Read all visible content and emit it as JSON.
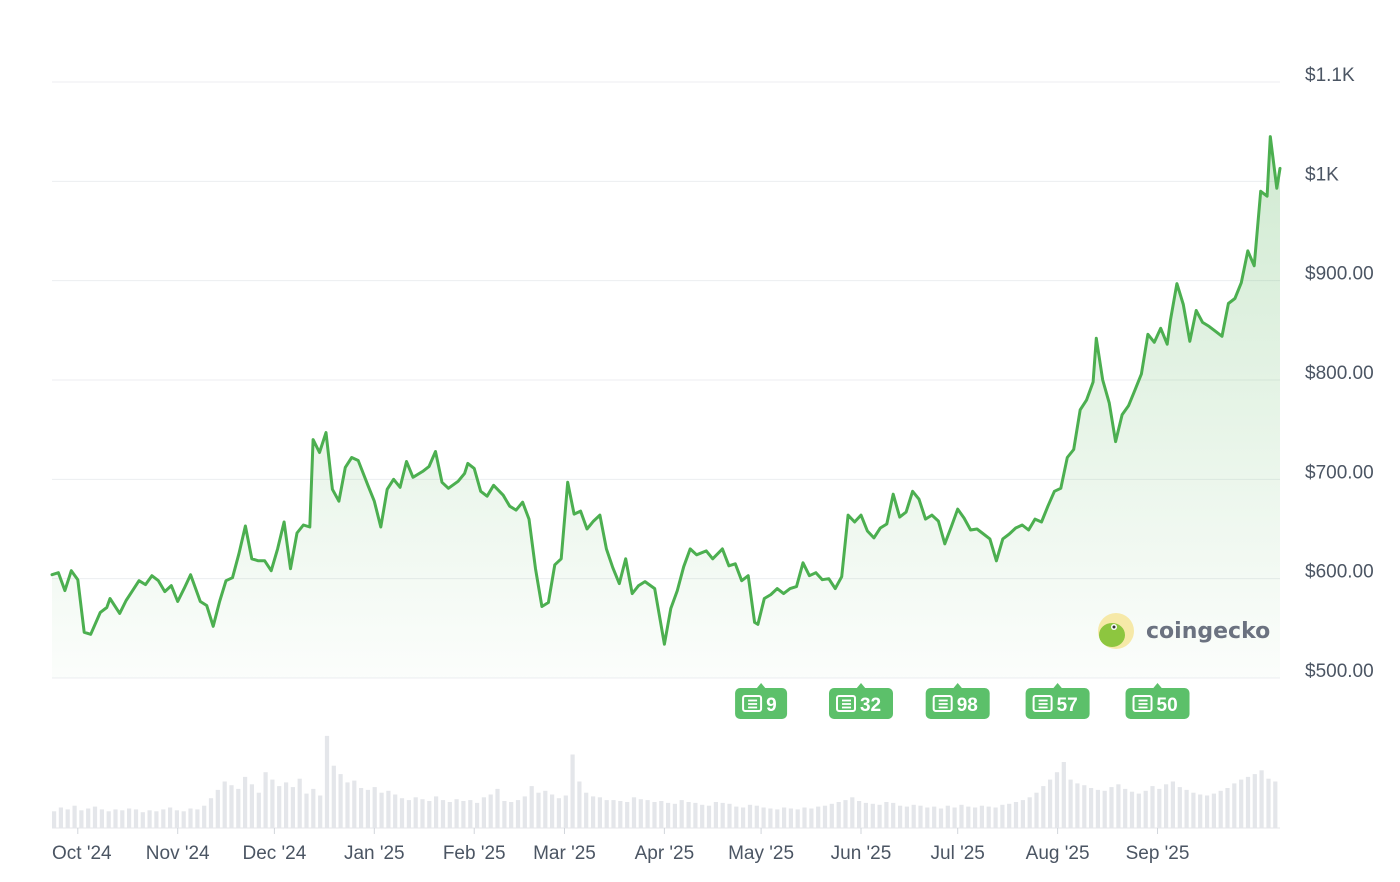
{
  "chart_data": {
    "type": "area",
    "title": "",
    "xlabel": "",
    "ylabel": "",
    "ylim": [
      500,
      1100
    ],
    "grid": true,
    "y_ticks": [
      {
        "value": 1100,
        "label": "$1.1K"
      },
      {
        "value": 1000,
        "label": "$1K"
      },
      {
        "value": 900,
        "label": "$900.00"
      },
      {
        "value": 800,
        "label": "$800.00"
      },
      {
        "value": 700,
        "label": "$700.00"
      },
      {
        "value": 600,
        "label": "$600.00"
      },
      {
        "value": 500,
        "label": "$500.00"
      }
    ],
    "x_ticks": [
      {
        "date": "2024-10-01",
        "label": "Oct '24"
      },
      {
        "date": "2024-11-01",
        "label": "Nov '24"
      },
      {
        "date": "2024-12-01",
        "label": "Dec '24"
      },
      {
        "date": "2025-01-01",
        "label": "Jan '25"
      },
      {
        "date": "2025-02-01",
        "label": "Feb '25"
      },
      {
        "date": "2025-03-01",
        "label": "Mar '25"
      },
      {
        "date": "2025-04-01",
        "label": "Apr '25"
      },
      {
        "date": "2025-05-01",
        "label": "May '25"
      },
      {
        "date": "2025-06-01",
        "label": "Jun '25"
      },
      {
        "date": "2025-07-01",
        "label": "Jul '25"
      },
      {
        "date": "2025-08-01",
        "label": "Aug '25"
      },
      {
        "date": "2025-09-01",
        "label": "Sep '25"
      }
    ],
    "series": [
      {
        "color": "#4caf50",
        "points": [
          [
            "2024-09-23",
            604
          ],
          [
            "2024-09-25",
            606
          ],
          [
            "2024-09-27",
            588
          ],
          [
            "2024-09-29",
            608
          ],
          [
            "2024-10-01",
            599
          ],
          [
            "2024-10-03",
            546
          ],
          [
            "2024-10-05",
            544
          ],
          [
            "2024-10-08",
            566
          ],
          [
            "2024-10-10",
            571
          ],
          [
            "2024-10-11",
            580
          ],
          [
            "2024-10-14",
            565
          ],
          [
            "2024-10-16",
            578
          ],
          [
            "2024-10-18",
            588
          ],
          [
            "2024-10-20",
            598
          ],
          [
            "2024-10-22",
            594
          ],
          [
            "2024-10-24",
            603
          ],
          [
            "2024-10-26",
            598
          ],
          [
            "2024-10-28",
            587
          ],
          [
            "2024-10-30",
            593
          ],
          [
            "2024-11-01",
            577
          ],
          [
            "2024-11-03",
            590
          ],
          [
            "2024-11-05",
            604
          ],
          [
            "2024-11-08",
            577
          ],
          [
            "2024-11-10",
            573
          ],
          [
            "2024-11-12",
            552
          ],
          [
            "2024-11-14",
            577
          ],
          [
            "2024-11-16",
            598
          ],
          [
            "2024-11-18",
            601
          ],
          [
            "2024-11-20",
            625
          ],
          [
            "2024-11-22",
            653
          ],
          [
            "2024-11-24",
            620
          ],
          [
            "2024-11-26",
            618
          ],
          [
            "2024-11-28",
            618
          ],
          [
            "2024-11-30",
            608
          ],
          [
            "2024-12-02",
            630
          ],
          [
            "2024-12-04",
            657
          ],
          [
            "2024-12-06",
            610
          ],
          [
            "2024-12-08",
            646
          ],
          [
            "2024-12-10",
            654
          ],
          [
            "2024-12-12",
            652
          ],
          [
            "2024-12-13",
            740
          ],
          [
            "2024-12-15",
            727
          ],
          [
            "2024-12-17",
            747
          ],
          [
            "2024-12-19",
            690
          ],
          [
            "2024-12-21",
            678
          ],
          [
            "2024-12-23",
            712
          ],
          [
            "2024-12-25",
            722
          ],
          [
            "2024-12-27",
            719
          ],
          [
            "2024-12-30",
            694
          ],
          [
            "2025-01-01",
            678
          ],
          [
            "2025-01-03",
            652
          ],
          [
            "2025-01-05",
            690
          ],
          [
            "2025-01-07",
            700
          ],
          [
            "2025-01-09",
            692
          ],
          [
            "2025-01-11",
            718
          ],
          [
            "2025-01-13",
            702
          ],
          [
            "2025-01-16",
            708
          ],
          [
            "2025-01-18",
            713
          ],
          [
            "2025-01-20",
            728
          ],
          [
            "2025-01-22",
            697
          ],
          [
            "2025-01-24",
            691
          ],
          [
            "2025-01-27",
            698
          ],
          [
            "2025-01-29",
            706
          ],
          [
            "2025-01-30",
            716
          ],
          [
            "2025-02-01",
            711
          ],
          [
            "2025-02-03",
            688
          ],
          [
            "2025-02-05",
            683
          ],
          [
            "2025-02-07",
            694
          ],
          [
            "2025-02-10",
            684
          ],
          [
            "2025-02-12",
            673
          ],
          [
            "2025-02-14",
            669
          ],
          [
            "2025-02-16",
            677
          ],
          [
            "2025-02-18",
            660
          ],
          [
            "2025-02-20",
            610
          ],
          [
            "2025-02-22",
            572
          ],
          [
            "2025-02-24",
            576
          ],
          [
            "2025-02-26",
            614
          ],
          [
            "2025-02-28",
            620
          ],
          [
            "2025-03-02",
            697
          ],
          [
            "2025-03-04",
            665
          ],
          [
            "2025-03-06",
            668
          ],
          [
            "2025-03-08",
            650
          ],
          [
            "2025-03-10",
            658
          ],
          [
            "2025-03-12",
            664
          ],
          [
            "2025-03-14",
            630
          ],
          [
            "2025-03-16",
            611
          ],
          [
            "2025-03-18",
            595
          ],
          [
            "2025-03-20",
            620
          ],
          [
            "2025-03-22",
            585
          ],
          [
            "2025-03-24",
            593
          ],
          [
            "2025-03-26",
            597
          ],
          [
            "2025-03-29",
            590
          ],
          [
            "2025-04-01",
            534
          ],
          [
            "2025-04-03",
            570
          ],
          [
            "2025-04-05",
            588
          ],
          [
            "2025-04-07",
            612
          ],
          [
            "2025-04-09",
            630
          ],
          [
            "2025-04-11",
            624
          ],
          [
            "2025-04-14",
            628
          ],
          [
            "2025-04-16",
            620
          ],
          [
            "2025-04-19",
            630
          ],
          [
            "2025-04-21",
            613
          ],
          [
            "2025-04-23",
            615
          ],
          [
            "2025-04-25",
            598
          ],
          [
            "2025-04-27",
            603
          ],
          [
            "2025-04-29",
            556
          ],
          [
            "2025-04-30",
            554
          ],
          [
            "2025-05-02",
            580
          ],
          [
            "2025-05-04",
            584
          ],
          [
            "2025-05-06",
            590
          ],
          [
            "2025-05-08",
            585
          ],
          [
            "2025-05-10",
            590
          ],
          [
            "2025-05-12",
            592
          ],
          [
            "2025-05-14",
            616
          ],
          [
            "2025-05-16",
            603
          ],
          [
            "2025-05-18",
            606
          ],
          [
            "2025-05-20",
            599
          ],
          [
            "2025-05-22",
            600
          ],
          [
            "2025-05-24",
            590
          ],
          [
            "2025-05-26",
            602
          ],
          [
            "2025-05-28",
            664
          ],
          [
            "2025-05-30",
            657
          ],
          [
            "2025-06-01",
            664
          ],
          [
            "2025-06-03",
            648
          ],
          [
            "2025-06-05",
            641
          ],
          [
            "2025-06-07",
            651
          ],
          [
            "2025-06-09",
            655
          ],
          [
            "2025-06-11",
            685
          ],
          [
            "2025-06-13",
            662
          ],
          [
            "2025-06-15",
            667
          ],
          [
            "2025-06-17",
            688
          ],
          [
            "2025-06-19",
            680
          ],
          [
            "2025-06-21",
            660
          ],
          [
            "2025-06-23",
            664
          ],
          [
            "2025-06-25",
            658
          ],
          [
            "2025-06-27",
            635
          ],
          [
            "2025-06-29",
            652
          ],
          [
            "2025-07-01",
            670
          ],
          [
            "2025-07-03",
            661
          ],
          [
            "2025-07-05",
            649
          ],
          [
            "2025-07-07",
            650
          ],
          [
            "2025-07-09",
            645
          ],
          [
            "2025-07-11",
            640
          ],
          [
            "2025-07-13",
            618
          ],
          [
            "2025-07-15",
            640
          ],
          [
            "2025-07-17",
            645
          ],
          [
            "2025-07-19",
            651
          ],
          [
            "2025-07-21",
            654
          ],
          [
            "2025-07-23",
            649
          ],
          [
            "2025-07-25",
            660
          ],
          [
            "2025-07-27",
            657
          ],
          [
            "2025-07-29",
            673
          ],
          [
            "2025-07-31",
            688
          ],
          [
            "2025-08-02",
            691
          ],
          [
            "2025-08-04",
            722
          ],
          [
            "2025-08-06",
            730
          ],
          [
            "2025-08-08",
            770
          ],
          [
            "2025-08-10",
            780
          ],
          [
            "2025-08-12",
            798
          ],
          [
            "2025-08-13",
            842
          ],
          [
            "2025-08-15",
            800
          ],
          [
            "2025-08-17",
            777
          ],
          [
            "2025-08-19",
            738
          ],
          [
            "2025-08-21",
            765
          ],
          [
            "2025-08-23",
            774
          ],
          [
            "2025-08-25",
            790
          ],
          [
            "2025-08-27",
            806
          ],
          [
            "2025-08-29",
            846
          ],
          [
            "2025-08-31",
            838
          ],
          [
            "2025-09-02",
            852
          ],
          [
            "2025-09-04",
            836
          ],
          [
            "2025-09-05",
            860
          ],
          [
            "2025-09-07",
            897
          ],
          [
            "2025-09-09",
            876
          ],
          [
            "2025-09-11",
            839
          ],
          [
            "2025-09-13",
            870
          ],
          [
            "2025-09-15",
            858
          ],
          [
            "2025-09-17",
            854
          ],
          [
            "2025-09-19",
            849
          ],
          [
            "2025-09-21",
            844
          ],
          [
            "2025-09-23",
            877
          ],
          [
            "2025-09-25",
            882
          ],
          [
            "2025-09-27",
            898
          ],
          [
            "2025-09-29",
            930
          ],
          [
            "2025-10-01",
            915
          ],
          [
            "2025-10-03",
            990
          ],
          [
            "2025-10-05",
            985
          ],
          [
            "2025-10-06",
            1045
          ],
          [
            "2025-10-08",
            993
          ],
          [
            "2025-10-09",
            1013
          ]
        ]
      }
    ],
    "news_markers": [
      {
        "date": "2025-05-01",
        "count": "9"
      },
      {
        "date": "2025-06-01",
        "count": "32"
      },
      {
        "date": "2025-07-01",
        "count": "98"
      },
      {
        "date": "2025-08-01",
        "count": "57"
      },
      {
        "date": "2025-09-01",
        "count": "50"
      }
    ],
    "volume_note": "relative volume bars (0-1)",
    "volume": [
      0.18,
      0.22,
      0.2,
      0.24,
      0.19,
      0.21,
      0.23,
      0.2,
      0.18,
      0.2,
      0.19,
      0.21,
      0.2,
      0.17,
      0.19,
      0.18,
      0.2,
      0.22,
      0.19,
      0.18,
      0.21,
      0.2,
      0.24,
      0.32,
      0.41,
      0.5,
      0.46,
      0.42,
      0.55,
      0.47,
      0.38,
      0.6,
      0.52,
      0.45,
      0.49,
      0.44,
      0.53,
      0.37,
      0.42,
      0.35,
      0.99,
      0.67,
      0.58,
      0.49,
      0.51,
      0.43,
      0.41,
      0.44,
      0.38,
      0.4,
      0.36,
      0.32,
      0.3,
      0.33,
      0.31,
      0.29,
      0.34,
      0.3,
      0.28,
      0.31,
      0.29,
      0.3,
      0.27,
      0.33,
      0.36,
      0.42,
      0.29,
      0.28,
      0.3,
      0.34,
      0.45,
      0.38,
      0.4,
      0.36,
      0.32,
      0.35,
      0.79,
      0.5,
      0.38,
      0.34,
      0.33,
      0.3,
      0.3,
      0.29,
      0.28,
      0.33,
      0.31,
      0.3,
      0.28,
      0.29,
      0.27,
      0.26,
      0.3,
      0.28,
      0.27,
      0.25,
      0.24,
      0.28,
      0.27,
      0.26,
      0.23,
      0.22,
      0.25,
      0.24,
      0.22,
      0.21,
      0.2,
      0.22,
      0.21,
      0.2,
      0.22,
      0.21,
      0.23,
      0.24,
      0.26,
      0.28,
      0.3,
      0.33,
      0.29,
      0.27,
      0.26,
      0.25,
      0.28,
      0.27,
      0.24,
      0.23,
      0.25,
      0.24,
      0.22,
      0.23,
      0.21,
      0.24,
      0.22,
      0.25,
      0.23,
      0.22,
      0.24,
      0.23,
      0.22,
      0.25,
      0.26,
      0.28,
      0.3,
      0.33,
      0.38,
      0.45,
      0.52,
      0.6,
      0.71,
      0.52,
      0.48,
      0.46,
      0.43,
      0.41,
      0.4,
      0.44,
      0.47,
      0.42,
      0.39,
      0.37,
      0.4,
      0.45,
      0.42,
      0.47,
      0.5,
      0.44,
      0.41,
      0.38,
      0.36,
      0.35,
      0.37,
      0.4,
      0.43,
      0.48,
      0.52,
      0.55,
      0.58,
      0.62,
      0.53,
      0.5
    ]
  },
  "watermark": {
    "text": "coingecko"
  }
}
